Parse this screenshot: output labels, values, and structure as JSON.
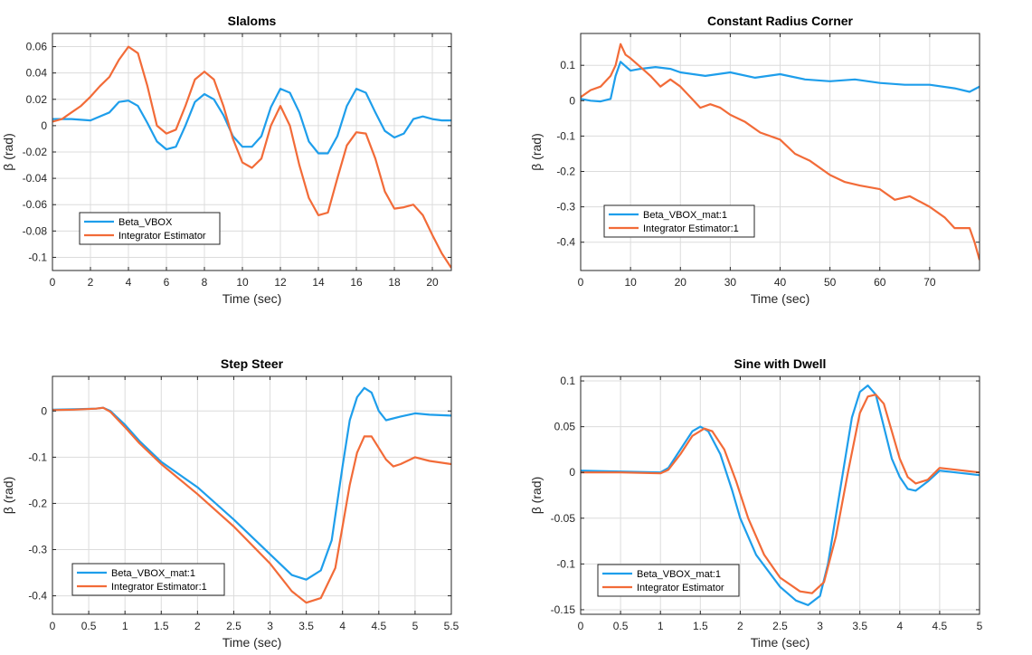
{
  "colors": {
    "beta_vbox": "#1E9EEB",
    "integrator": "#F26B38"
  },
  "chart_data": [
    {
      "type": "line",
      "title": "Slaloms",
      "xlabel": "Time (sec)",
      "ylabel": "β (rad)",
      "xlim": [
        0,
        21
      ],
      "ylim": [
        -0.11,
        0.07
      ],
      "xticks": [
        0,
        2,
        4,
        6,
        8,
        10,
        12,
        14,
        16,
        18,
        20
      ],
      "yticks": [
        -0.1,
        -0.08,
        -0.06,
        -0.04,
        -0.02,
        0,
        0.02,
        0.04,
        0.06
      ],
      "ytick_labels": [
        "-0.1",
        "-0.08",
        "-0.06",
        "-0.04",
        "-0.02",
        "0",
        "0.02",
        "0.04",
        "0.06"
      ],
      "grid": true,
      "legend_position": "lower-left",
      "series": [
        {
          "name": "Beta_VBOX",
          "color_key": "beta_vbox",
          "x": [
            0,
            1,
            2,
            3,
            3.5,
            4,
            4.5,
            5,
            5.5,
            6,
            6.5,
            7,
            7.5,
            8,
            8.5,
            9,
            9.5,
            10,
            10.5,
            11,
            11.5,
            12,
            12.5,
            13,
            13.5,
            14,
            14.5,
            15,
            15.5,
            16,
            16.5,
            17,
            17.5,
            18,
            18.5,
            19,
            19.5,
            20,
            20.5,
            21
          ],
          "y": [
            0.005,
            0.005,
            0.004,
            0.01,
            0.018,
            0.019,
            0.015,
            0.002,
            -0.012,
            -0.018,
            -0.016,
            0.0,
            0.018,
            0.024,
            0.02,
            0.008,
            -0.008,
            -0.016,
            -0.016,
            -0.008,
            0.014,
            0.028,
            0.025,
            0.01,
            -0.012,
            -0.021,
            -0.021,
            -0.008,
            0.015,
            0.028,
            0.025,
            0.01,
            -0.004,
            -0.009,
            -0.006,
            0.005,
            0.007,
            0.005,
            0.004,
            0.004
          ]
        },
        {
          "name": "Integrator Estimator",
          "color_key": "integrator",
          "x": [
            0,
            0.5,
            1,
            1.5,
            2,
            2.5,
            3,
            3.5,
            4,
            4.5,
            5,
            5.5,
            6,
            6.5,
            7,
            7.5,
            8,
            8.5,
            9,
            9.5,
            10,
            10.5,
            11,
            11.5,
            12,
            12.5,
            13,
            13.5,
            14,
            14.5,
            15,
            15.5,
            16,
            16.5,
            17,
            17.5,
            18,
            18.5,
            19,
            19.5,
            20,
            20.5,
            21
          ],
          "y": [
            0.003,
            0.005,
            0.01,
            0.015,
            0.022,
            0.03,
            0.037,
            0.05,
            0.06,
            0.055,
            0.03,
            0.0,
            -0.006,
            -0.003,
            0.015,
            0.035,
            0.041,
            0.035,
            0.015,
            -0.01,
            -0.028,
            -0.032,
            -0.025,
            0.0,
            0.015,
            0.0,
            -0.03,
            -0.055,
            -0.068,
            -0.066,
            -0.04,
            -0.015,
            -0.005,
            -0.006,
            -0.025,
            -0.05,
            -0.063,
            -0.062,
            -0.06,
            -0.068,
            -0.083,
            -0.097,
            -0.108
          ]
        }
      ]
    },
    {
      "type": "line",
      "title": "Constant Radius Corner",
      "xlabel": "Time (sec)",
      "ylabel": "β (rad)",
      "xlim": [
        0,
        80
      ],
      "ylim": [
        -0.48,
        0.19
      ],
      "xticks": [
        0,
        10,
        20,
        30,
        40,
        50,
        60,
        70
      ],
      "yticks": [
        -0.4,
        -0.3,
        -0.2,
        -0.1,
        0,
        0.1
      ],
      "ytick_labels": [
        "-0.4",
        "-0.3",
        "-0.2",
        "-0.1",
        "0",
        "0.1"
      ],
      "grid": true,
      "legend_position": "lower-left",
      "series": [
        {
          "name": "Beta_VBOX_mat:1",
          "color_key": "beta_vbox",
          "x": [
            0,
            2,
            4,
            6,
            7,
            8,
            10,
            12,
            15,
            18,
            20,
            25,
            30,
            35,
            40,
            45,
            50,
            55,
            60,
            65,
            70,
            75,
            78,
            80
          ],
          "y": [
            0.005,
            0.0,
            -0.002,
            0.005,
            0.07,
            0.11,
            0.085,
            0.09,
            0.095,
            0.09,
            0.08,
            0.07,
            0.08,
            0.065,
            0.075,
            0.06,
            0.055,
            0.06,
            0.05,
            0.045,
            0.045,
            0.035,
            0.025,
            0.04
          ]
        },
        {
          "name": "Integrator Estimator:1",
          "color_key": "integrator",
          "x": [
            0,
            2,
            4,
            6,
            7,
            8,
            9,
            10,
            12,
            14,
            16,
            18,
            20,
            22,
            24,
            26,
            28,
            30,
            33,
            36,
            40,
            43,
            46,
            50,
            53,
            56,
            60,
            63,
            66,
            70,
            73,
            75,
            78,
            79,
            80
          ],
          "y": [
            0.01,
            0.03,
            0.04,
            0.07,
            0.1,
            0.16,
            0.13,
            0.12,
            0.095,
            0.07,
            0.04,
            0.06,
            0.04,
            0.01,
            -0.02,
            -0.01,
            -0.02,
            -0.04,
            -0.06,
            -0.09,
            -0.11,
            -0.15,
            -0.17,
            -0.21,
            -0.23,
            -0.24,
            -0.25,
            -0.28,
            -0.27,
            -0.3,
            -0.33,
            -0.36,
            -0.36,
            -0.4,
            -0.45
          ]
        }
      ]
    },
    {
      "type": "line",
      "title": "Step Steer",
      "xlabel": "Time (sec)",
      "ylabel": "β (rad)",
      "xlim": [
        0,
        5.5
      ],
      "ylim": [
        -0.44,
        0.075
      ],
      "xticks": [
        0,
        0.5,
        1,
        1.5,
        2,
        2.5,
        3,
        3.5,
        4,
        4.5,
        5,
        5.5
      ],
      "yticks": [
        -0.4,
        -0.3,
        -0.2,
        -0.1,
        0
      ],
      "ytick_labels": [
        "-0.4",
        "-0.3",
        "-0.2",
        "-0.1",
        "0"
      ],
      "grid": true,
      "legend_position": "lower-left",
      "series": [
        {
          "name": "Beta_VBOX_mat:1",
          "color_key": "beta_vbox",
          "x": [
            0,
            0.3,
            0.6,
            0.7,
            0.8,
            1,
            1.2,
            1.5,
            2,
            2.5,
            3,
            3.3,
            3.5,
            3.7,
            3.85,
            4,
            4.1,
            4.2,
            4.3,
            4.4,
            4.5,
            4.6,
            4.8,
            5,
            5.2,
            5.5
          ],
          "y": [
            0.003,
            0.004,
            0.005,
            0.007,
            0.0,
            -0.03,
            -0.065,
            -0.11,
            -0.165,
            -0.235,
            -0.31,
            -0.355,
            -0.365,
            -0.345,
            -0.28,
            -0.12,
            -0.02,
            0.03,
            0.05,
            0.04,
            0.0,
            -0.02,
            -0.012,
            -0.005,
            -0.008,
            -0.01
          ]
        },
        {
          "name": "Integrator Estimator:1",
          "color_key": "integrator",
          "x": [
            0,
            0.3,
            0.6,
            0.7,
            0.8,
            1,
            1.2,
            1.5,
            2,
            2.5,
            3,
            3.3,
            3.5,
            3.7,
            3.9,
            4,
            4.1,
            4.2,
            4.3,
            4.4,
            4.5,
            4.6,
            4.7,
            4.8,
            5,
            5.2,
            5.5
          ],
          "y": [
            0.002,
            0.003,
            0.005,
            0.007,
            -0.002,
            -0.035,
            -0.07,
            -0.115,
            -0.18,
            -0.25,
            -0.33,
            -0.39,
            -0.415,
            -0.405,
            -0.34,
            -0.25,
            -0.16,
            -0.09,
            -0.055,
            -0.055,
            -0.08,
            -0.105,
            -0.12,
            -0.115,
            -0.1,
            -0.108,
            -0.115
          ]
        }
      ]
    },
    {
      "type": "line",
      "title": "Sine with Dwell",
      "xlabel": "Time (sec)",
      "ylabel": "β (rad)",
      "xlim": [
        0,
        5
      ],
      "ylim": [
        -0.155,
        0.105
      ],
      "xticks": [
        0,
        0.5,
        1,
        1.5,
        2,
        2.5,
        3,
        3.5,
        4,
        4.5,
        5
      ],
      "yticks": [
        -0.15,
        -0.1,
        -0.05,
        0,
        0.05,
        0.1
      ],
      "ytick_labels": [
        "-0.15",
        "-0.1",
        "-0.05",
        "0",
        "0.05",
        "0.1"
      ],
      "grid": true,
      "legend_position": "lower-left",
      "series": [
        {
          "name": "Beta_VBOX_mat:1",
          "color_key": "beta_vbox",
          "x": [
            0,
            0.5,
            1,
            1.1,
            1.25,
            1.4,
            1.5,
            1.6,
            1.75,
            1.9,
            2,
            2.2,
            2.5,
            2.7,
            2.85,
            3,
            3.1,
            3.25,
            3.4,
            3.5,
            3.6,
            3.7,
            3.8,
            3.9,
            4,
            4.1,
            4.2,
            4.35,
            4.5,
            4.7,
            5
          ],
          "y": [
            0.002,
            0.001,
            0.0,
            0.005,
            0.025,
            0.045,
            0.05,
            0.045,
            0.02,
            -0.02,
            -0.05,
            -0.09,
            -0.125,
            -0.14,
            -0.145,
            -0.135,
            -0.1,
            -0.02,
            0.06,
            0.088,
            0.095,
            0.085,
            0.05,
            0.015,
            -0.005,
            -0.018,
            -0.02,
            -0.01,
            0.002,
            0.0,
            -0.003
          ]
        },
        {
          "name": "Integrator Estimator",
          "color_key": "integrator",
          "x": [
            0,
            0.5,
            1,
            1.1,
            1.25,
            1.4,
            1.55,
            1.65,
            1.8,
            1.95,
            2.1,
            2.3,
            2.5,
            2.75,
            2.9,
            3.05,
            3.2,
            3.35,
            3.5,
            3.6,
            3.7,
            3.8,
            3.9,
            4,
            4.1,
            4.2,
            4.35,
            4.5,
            4.7,
            5
          ],
          "y": [
            0.0,
            0.0,
            -0.001,
            0.003,
            0.02,
            0.04,
            0.048,
            0.045,
            0.025,
            -0.01,
            -0.05,
            -0.09,
            -0.115,
            -0.13,
            -0.132,
            -0.12,
            -0.07,
            0.0,
            0.065,
            0.083,
            0.085,
            0.075,
            0.045,
            0.015,
            -0.005,
            -0.012,
            -0.008,
            0.005,
            0.003,
            0.0
          ]
        }
      ]
    }
  ]
}
